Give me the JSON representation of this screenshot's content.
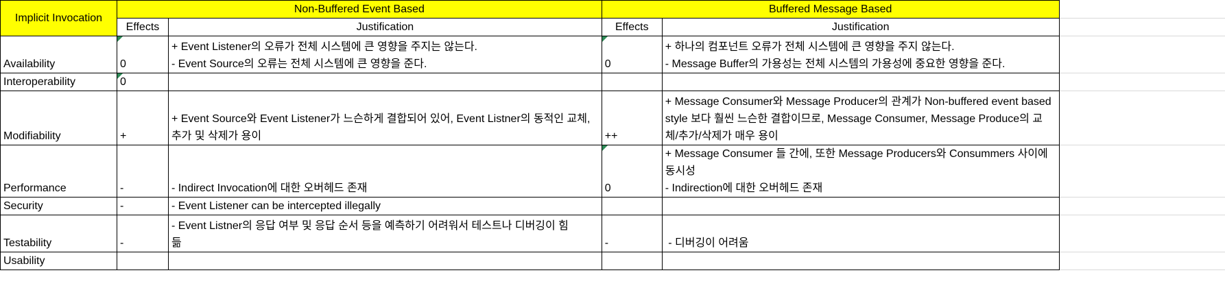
{
  "header": {
    "corner": "Implicit Invocation",
    "group1": "Non-Buffered Event Based",
    "group2": "Buffered Message Based",
    "effects1": "Effects",
    "justification1": "Justification",
    "effects2": "Effects",
    "justification2": "Justification"
  },
  "rows": [
    {
      "attribute": "Availability",
      "nb_effect": "0",
      "nb_justification": [
        "+ Event Listener의 오류가 전체 시스템에 큰 영향을 주지는 않는다.",
        "- Event Source의 오류는 전체 시스템에 큰 영향을 준다."
      ],
      "b_effect": "0",
      "b_justification": [
        "+ 하나의 컴포넌트 오류가 전체 시스템에 큰 영향을 주지 않는다.",
        "- Message Buffer의 가용성는 전체 시스템의 가용성에 중요한 영향을 준다."
      ]
    },
    {
      "attribute": "Interoperability",
      "nb_effect": "0",
      "nb_justification": [],
      "b_effect": "",
      "b_justification": []
    },
    {
      "attribute": "Modifiability",
      "nb_effect": "+",
      "nb_justification": [
        "+ Event Source와 Event Listener가 느슨하게 결합되어 있어, Event Listner의 동적인 교체,",
        "추가 및 삭제가 용이"
      ],
      "b_effect": "++",
      "b_justification": [
        "+ Message Consumer와 Message Producer의 관계가 Non-buffered event based",
        "style 보다 훨씬 느슨한 결합이므로, Message Consumer, Message Produce의 교",
        "체/추가/삭제가 매우 용이"
      ]
    },
    {
      "attribute": "Performance",
      "nb_effect": "-",
      "nb_justification": [
        "- Indirect Invocation에 대한 오버헤드 존재"
      ],
      "b_effect": "0",
      "b_justification": [
        "+ Message Consumer 들 간에, 또한 Message Producers와 Consummers 사이에",
        "동시성",
        "- Indirection에 대한 오버헤드 존재"
      ]
    },
    {
      "attribute": "Security",
      "nb_effect": "-",
      "nb_justification": [
        "- Event Listener can be intercepted illegally"
      ],
      "b_effect": "",
      "b_justification": []
    },
    {
      "attribute": "Testability",
      "nb_effect": "-",
      "nb_justification": [
        "- Event Listner의 응답 여부 및 응답 순서 등을 예측하기 어려워서 테스트나 디버깅이 힘",
        "듦"
      ],
      "b_effect": "-",
      "b_justification": [
        " - 디버깅이 어려움"
      ]
    },
    {
      "attribute": "Usability",
      "nb_effect": "",
      "nb_justification": [],
      "b_effect": "",
      "b_justification": []
    }
  ]
}
